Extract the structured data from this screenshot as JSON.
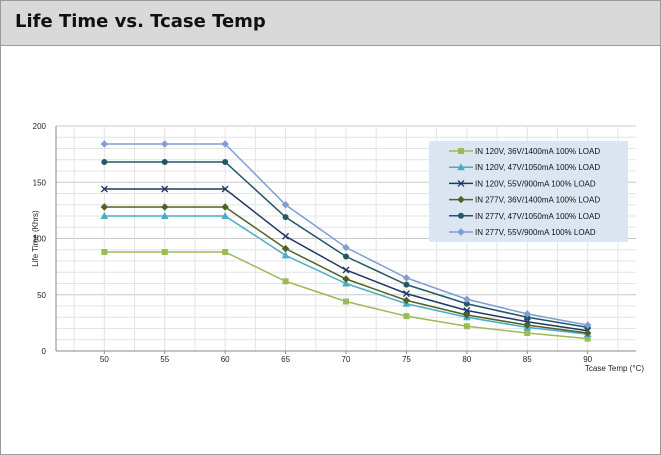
{
  "header": {
    "title": "Life Time vs. Tcase Temp"
  },
  "chart_data": {
    "type": "line",
    "xlabel": "Tcase Temp (°C)",
    "ylabel": "Life Time (Khrs)",
    "x": [
      50,
      55,
      60,
      65,
      70,
      75,
      80,
      85,
      90
    ],
    "xlim": [
      46,
      94
    ],
    "ylim": [
      0,
      200
    ],
    "xticks": [
      50,
      55,
      60,
      65,
      70,
      75,
      80,
      85,
      90
    ],
    "yticks": [
      0,
      50,
      100,
      150,
      200
    ],
    "grid": true,
    "legend_position": "top-right",
    "series": [
      {
        "name": "IN 120V, 36V/1400mA 100% LOAD",
        "color": "#9bbb59",
        "marker": "square",
        "values": [
          88,
          88,
          88,
          62,
          44,
          31,
          22,
          16,
          11
        ]
      },
      {
        "name": "IN 120V, 47V/1050mA 100% LOAD",
        "color": "#4bacc6",
        "marker": "triangle",
        "values": [
          120,
          120,
          120,
          85,
          60,
          42,
          30,
          21,
          15
        ]
      },
      {
        "name": "IN 120V, 55V/900mA 100% LOAD",
        "color": "#1f3864",
        "marker": "x",
        "values": [
          144,
          144,
          144,
          102,
          72,
          51,
          36,
          26,
          18
        ]
      },
      {
        "name": "IN 277V, 36V/1400mA 100% LOAD",
        "color": "#4f6228",
        "marker": "diamond",
        "values": [
          128,
          128,
          128,
          91,
          64,
          45,
          32,
          23,
          16
        ]
      },
      {
        "name": "IN 277V, 47V/1050mA 100% LOAD",
        "color": "#215868",
        "marker": "circle",
        "values": [
          168,
          168,
          168,
          119,
          84,
          59,
          42,
          30,
          21
        ]
      },
      {
        "name": "IN 277V, 55V/900mA 100% LOAD",
        "color": "#7f9fd4",
        "marker": "diamond",
        "values": [
          184,
          184,
          184,
          130,
          92,
          65,
          46,
          33,
          23
        ]
      }
    ]
  }
}
